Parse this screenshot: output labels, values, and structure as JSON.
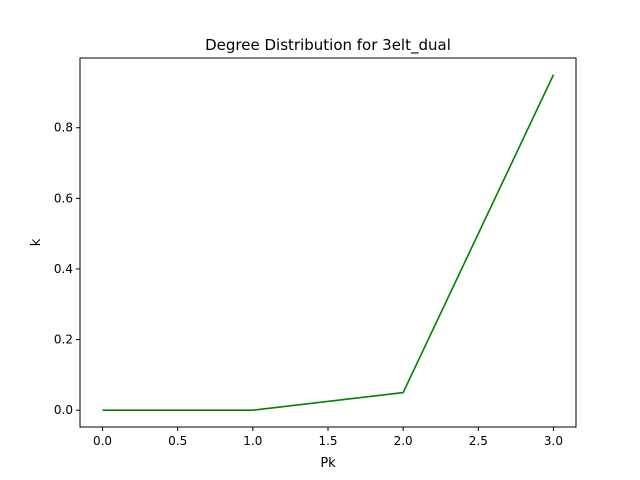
{
  "chart_data": {
    "type": "line",
    "title": "Degree Distribution for 3elt_dual",
    "xlabel": "Pk",
    "ylabel": "k",
    "xlim": [
      -0.15,
      3.15
    ],
    "ylim": [
      -0.0475,
      0.9975
    ],
    "x_ticks": [
      0.0,
      0.5,
      1.0,
      1.5,
      2.0,
      2.5,
      3.0
    ],
    "x_tick_labels": [
      "0.0",
      "0.5",
      "1.0",
      "1.5",
      "2.0",
      "2.5",
      "3.0"
    ],
    "y_ticks": [
      0.0,
      0.2,
      0.4,
      0.6,
      0.8
    ],
    "y_tick_labels": [
      "0.0",
      "0.2",
      "0.4",
      "0.6",
      "0.8"
    ],
    "grid": false,
    "series": [
      {
        "color": "#008000",
        "x": [
          0,
          1,
          2,
          3
        ],
        "y": [
          0.0,
          0.0,
          0.05,
          0.95
        ]
      }
    ]
  }
}
